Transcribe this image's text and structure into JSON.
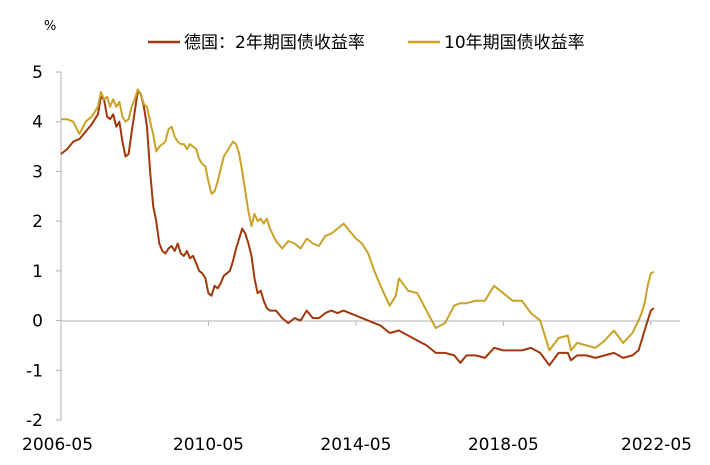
{
  "chart_data": {
    "type": "line",
    "unit_label": "%",
    "ylim": [
      -2,
      5
    ],
    "y_ticks": [
      5,
      4,
      3,
      2,
      1,
      0,
      -1,
      -2
    ],
    "y_tick_labels": [
      "5",
      "4",
      "3",
      "2",
      "1",
      "0",
      "-1",
      "-2"
    ],
    "x_range": [
      "2006-05",
      "2022-08"
    ],
    "x_ticks": [
      "2006-05",
      "2010-05",
      "2014-05",
      "2018-05",
      "2022-05"
    ],
    "grid": false,
    "legend_position": "top",
    "series": [
      {
        "name": "德国：2年期国债收益率",
        "color": "#a0380c",
        "points": [
          [
            "2006-05",
            3.35
          ],
          [
            "2006-07",
            3.45
          ],
          [
            "2006-09",
            3.6
          ],
          [
            "2006-11",
            3.65
          ],
          [
            "2007-01",
            3.8
          ],
          [
            "2007-03",
            3.95
          ],
          [
            "2007-05",
            4.15
          ],
          [
            "2007-06",
            4.5
          ],
          [
            "2007-07",
            4.45
          ],
          [
            "2007-08",
            4.1
          ],
          [
            "2007-09",
            4.05
          ],
          [
            "2007-10",
            4.15
          ],
          [
            "2007-11",
            3.9
          ],
          [
            "2007-12",
            4.0
          ],
          [
            "2008-01",
            3.6
          ],
          [
            "2008-02",
            3.3
          ],
          [
            "2008-03",
            3.35
          ],
          [
            "2008-04",
            3.8
          ],
          [
            "2008-05",
            4.2
          ],
          [
            "2008-06",
            4.62
          ],
          [
            "2008-07",
            4.55
          ],
          [
            "2008-08",
            4.3
          ],
          [
            "2008-09",
            3.9
          ],
          [
            "2008-10",
            3.0
          ],
          [
            "2008-11",
            2.3
          ],
          [
            "2008-12",
            2.0
          ],
          [
            "2009-01",
            1.55
          ],
          [
            "2009-02",
            1.4
          ],
          [
            "2009-03",
            1.35
          ],
          [
            "2009-04",
            1.45
          ],
          [
            "2009-05",
            1.5
          ],
          [
            "2009-06",
            1.4
          ],
          [
            "2009-07",
            1.55
          ],
          [
            "2009-08",
            1.35
          ],
          [
            "2009-09",
            1.3
          ],
          [
            "2009-10",
            1.4
          ],
          [
            "2009-11",
            1.25
          ],
          [
            "2009-12",
            1.3
          ],
          [
            "2010-01",
            1.15
          ],
          [
            "2010-02",
            1.0
          ],
          [
            "2010-03",
            0.95
          ],
          [
            "2010-04",
            0.85
          ],
          [
            "2010-05",
            0.55
          ],
          [
            "2010-06",
            0.5
          ],
          [
            "2010-07",
            0.7
          ],
          [
            "2010-08",
            0.65
          ],
          [
            "2010-09",
            0.75
          ],
          [
            "2010-10",
            0.9
          ],
          [
            "2010-11",
            0.95
          ],
          [
            "2010-12",
            1.0
          ],
          [
            "2011-01",
            1.2
          ],
          [
            "2011-02",
            1.45
          ],
          [
            "2011-03",
            1.65
          ],
          [
            "2011-04",
            1.85
          ],
          [
            "2011-05",
            1.75
          ],
          [
            "2011-06",
            1.55
          ],
          [
            "2011-07",
            1.3
          ],
          [
            "2011-08",
            0.85
          ],
          [
            "2011-09",
            0.55
          ],
          [
            "2011-10",
            0.6
          ],
          [
            "2011-11",
            0.4
          ],
          [
            "2011-12",
            0.25
          ],
          [
            "2012-01",
            0.2
          ],
          [
            "2012-03",
            0.2
          ],
          [
            "2012-05",
            0.05
          ],
          [
            "2012-07",
            -0.05
          ],
          [
            "2012-09",
            0.05
          ],
          [
            "2012-11",
            0.0
          ],
          [
            "2013-01",
            0.2
          ],
          [
            "2013-03",
            0.05
          ],
          [
            "2013-05",
            0.05
          ],
          [
            "2013-07",
            0.15
          ],
          [
            "2013-09",
            0.2
          ],
          [
            "2013-11",
            0.15
          ],
          [
            "2014-01",
            0.2
          ],
          [
            "2014-03",
            0.15
          ],
          [
            "2014-05",
            0.1
          ],
          [
            "2014-07",
            0.05
          ],
          [
            "2014-09",
            0.0
          ],
          [
            "2014-11",
            -0.05
          ],
          [
            "2015-01",
            -0.1
          ],
          [
            "2015-04",
            -0.25
          ],
          [
            "2015-07",
            -0.2
          ],
          [
            "2015-10",
            -0.3
          ],
          [
            "2016-01",
            -0.4
          ],
          [
            "2016-04",
            -0.5
          ],
          [
            "2016-07",
            -0.65
          ],
          [
            "2016-10",
            -0.65
          ],
          [
            "2017-01",
            -0.7
          ],
          [
            "2017-03",
            -0.85
          ],
          [
            "2017-05",
            -0.7
          ],
          [
            "2017-08",
            -0.7
          ],
          [
            "2017-11",
            -0.75
          ],
          [
            "2018-02",
            -0.55
          ],
          [
            "2018-05",
            -0.6
          ],
          [
            "2018-08",
            -0.6
          ],
          [
            "2018-11",
            -0.6
          ],
          [
            "2019-02",
            -0.55
          ],
          [
            "2019-05",
            -0.65
          ],
          [
            "2019-08",
            -0.9
          ],
          [
            "2019-11",
            -0.65
          ],
          [
            "2020-02",
            -0.65
          ],
          [
            "2020-03",
            -0.8
          ],
          [
            "2020-05",
            -0.7
          ],
          [
            "2020-08",
            -0.7
          ],
          [
            "2020-11",
            -0.75
          ],
          [
            "2021-02",
            -0.7
          ],
          [
            "2021-05",
            -0.65
          ],
          [
            "2021-08",
            -0.75
          ],
          [
            "2021-11",
            -0.7
          ],
          [
            "2022-01",
            -0.6
          ],
          [
            "2022-02",
            -0.4
          ],
          [
            "2022-03",
            -0.2
          ],
          [
            "2022-04",
            0.0
          ],
          [
            "2022-05",
            0.2
          ],
          [
            "2022-06",
            0.25
          ]
        ]
      },
      {
        "name": "10年期国债收益率",
        "color": "#c9a227",
        "points": [
          [
            "2006-05",
            4.05
          ],
          [
            "2006-07",
            4.05
          ],
          [
            "2006-09",
            4.0
          ],
          [
            "2006-11",
            3.75
          ],
          [
            "2007-01",
            4.0
          ],
          [
            "2007-03",
            4.1
          ],
          [
            "2007-05",
            4.3
          ],
          [
            "2007-06",
            4.6
          ],
          [
            "2007-07",
            4.45
          ],
          [
            "2007-08",
            4.5
          ],
          [
            "2007-09",
            4.3
          ],
          [
            "2007-10",
            4.45
          ],
          [
            "2007-11",
            4.3
          ],
          [
            "2007-12",
            4.4
          ],
          [
            "2008-01",
            4.1
          ],
          [
            "2008-02",
            4.0
          ],
          [
            "2008-03",
            4.05
          ],
          [
            "2008-04",
            4.3
          ],
          [
            "2008-05",
            4.45
          ],
          [
            "2008-06",
            4.65
          ],
          [
            "2008-07",
            4.55
          ],
          [
            "2008-08",
            4.35
          ],
          [
            "2008-09",
            4.3
          ],
          [
            "2008-10",
            4.0
          ],
          [
            "2008-11",
            3.75
          ],
          [
            "2008-12",
            3.4
          ],
          [
            "2009-01",
            3.5
          ],
          [
            "2009-02",
            3.55
          ],
          [
            "2009-03",
            3.6
          ],
          [
            "2009-04",
            3.85
          ],
          [
            "2009-05",
            3.9
          ],
          [
            "2009-06",
            3.7
          ],
          [
            "2009-07",
            3.6
          ],
          [
            "2009-08",
            3.55
          ],
          [
            "2009-09",
            3.55
          ],
          [
            "2009-10",
            3.45
          ],
          [
            "2009-11",
            3.55
          ],
          [
            "2009-12",
            3.5
          ],
          [
            "2010-01",
            3.45
          ],
          [
            "2010-02",
            3.25
          ],
          [
            "2010-03",
            3.15
          ],
          [
            "2010-04",
            3.1
          ],
          [
            "2010-05",
            2.8
          ],
          [
            "2010-06",
            2.55
          ],
          [
            "2010-07",
            2.6
          ],
          [
            "2010-08",
            2.8
          ],
          [
            "2010-09",
            3.05
          ],
          [
            "2010-10",
            3.3
          ],
          [
            "2010-11",
            3.4
          ],
          [
            "2010-12",
            3.5
          ],
          [
            "2011-01",
            3.6
          ],
          [
            "2011-02",
            3.55
          ],
          [
            "2011-03",
            3.35
          ],
          [
            "2011-04",
            3.0
          ],
          [
            "2011-05",
            2.6
          ],
          [
            "2011-06",
            2.2
          ],
          [
            "2011-07",
            1.9
          ],
          [
            "2011-08",
            2.15
          ],
          [
            "2011-09",
            2.0
          ],
          [
            "2011-10",
            2.05
          ],
          [
            "2011-11",
            1.95
          ],
          [
            "2011-12",
            2.05
          ],
          [
            "2012-01",
            1.85
          ],
          [
            "2012-03",
            1.6
          ],
          [
            "2012-05",
            1.45
          ],
          [
            "2012-07",
            1.6
          ],
          [
            "2012-09",
            1.55
          ],
          [
            "2012-11",
            1.45
          ],
          [
            "2013-01",
            1.65
          ],
          [
            "2013-03",
            1.55
          ],
          [
            "2013-05",
            1.5
          ],
          [
            "2013-07",
            1.7
          ],
          [
            "2013-09",
            1.75
          ],
          [
            "2013-11",
            1.85
          ],
          [
            "2014-01",
            1.95
          ],
          [
            "2014-03",
            1.8
          ],
          [
            "2014-05",
            1.65
          ],
          [
            "2014-07",
            1.55
          ],
          [
            "2014-09",
            1.35
          ],
          [
            "2014-11",
            1.0
          ],
          [
            "2015-01",
            0.7
          ],
          [
            "2015-04",
            0.3
          ],
          [
            "2015-06",
            0.5
          ],
          [
            "2015-07",
            0.85
          ],
          [
            "2015-10",
            0.6
          ],
          [
            "2016-01",
            0.55
          ],
          [
            "2016-04",
            0.2
          ],
          [
            "2016-07",
            -0.15
          ],
          [
            "2016-10",
            -0.05
          ],
          [
            "2017-01",
            0.3
          ],
          [
            "2017-03",
            0.35
          ],
          [
            "2017-05",
            0.35
          ],
          [
            "2017-08",
            0.4
          ],
          [
            "2017-11",
            0.4
          ],
          [
            "2018-02",
            0.7
          ],
          [
            "2018-05",
            0.55
          ],
          [
            "2018-08",
            0.4
          ],
          [
            "2018-11",
            0.4
          ],
          [
            "2019-02",
            0.15
          ],
          [
            "2019-05",
            0.0
          ],
          [
            "2019-08",
            -0.6
          ],
          [
            "2019-11",
            -0.35
          ],
          [
            "2020-02",
            -0.3
          ],
          [
            "2020-03",
            -0.6
          ],
          [
            "2020-05",
            -0.45
          ],
          [
            "2020-08",
            -0.5
          ],
          [
            "2020-11",
            -0.55
          ],
          [
            "2021-02",
            -0.4
          ],
          [
            "2021-05",
            -0.2
          ],
          [
            "2021-08",
            -0.45
          ],
          [
            "2021-11",
            -0.25
          ],
          [
            "2022-01",
            0.0
          ],
          [
            "2022-02",
            0.15
          ],
          [
            "2022-03",
            0.35
          ],
          [
            "2022-04",
            0.7
          ],
          [
            "2022-05",
            0.95
          ],
          [
            "2022-06",
            0.98
          ]
        ]
      }
    ]
  }
}
